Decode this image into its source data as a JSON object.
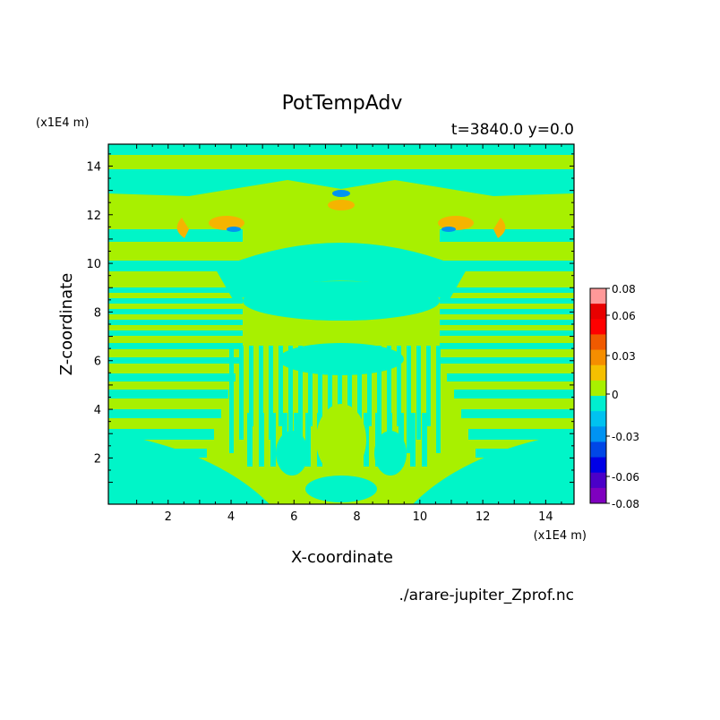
{
  "figure": {
    "title": "PotTempAdv",
    "subtitle": "t=3840.0  y=0.0",
    "y_unit": "(x1E4 m)",
    "x_unit": "(x1E4 m)",
    "source_file": "./arare-jupiter_Zprof.nc"
  },
  "chart_data": {
    "type": "heatmap",
    "title": "PotTempAdv",
    "xlabel": "X-coordinate",
    "ylabel": "Z-coordinate",
    "xlim": [
      0.1,
      14.9
    ],
    "ylim": [
      0.1,
      14.9
    ],
    "x_ticks": [
      2,
      4,
      6,
      8,
      10,
      12,
      14
    ],
    "y_ticks": [
      2,
      4,
      6,
      8,
      10,
      12,
      14
    ],
    "colorbar": {
      "tick_labels": [
        "0.08",
        "0.06",
        "0.03",
        "0",
        "-0.03",
        "-0.06",
        "-0.08"
      ],
      "levels": [
        -0.09,
        -0.08,
        -0.07,
        -0.06,
        -0.05,
        -0.04,
        -0.03,
        -0.02,
        -0.01,
        0.0,
        0.01,
        0.02,
        0.03,
        0.04,
        0.05,
        0.06,
        0.07,
        0.08,
        0.09
      ],
      "colors": [
        "#7f00bf",
        "#4b00c8",
        "#0000e6",
        "#0047e6",
        "#0093f2",
        "#00c2f0",
        "#00eed0",
        "#a8f000",
        "#f5c000",
        "#f58e00",
        "#f05a00",
        "#ff0000",
        "#e80000",
        "#ff9999"
      ],
      "color_counts": "14 bands"
    },
    "dominant_values": {
      "background_positive": "0 to 0.01",
      "background_negative": "-0.01 to 0"
    }
  },
  "colors": {
    "negative_main": "#00f5c8",
    "positive_main": "#a8f000",
    "orange_blob": "#f5b400",
    "blue_blob": "#0094f0"
  }
}
